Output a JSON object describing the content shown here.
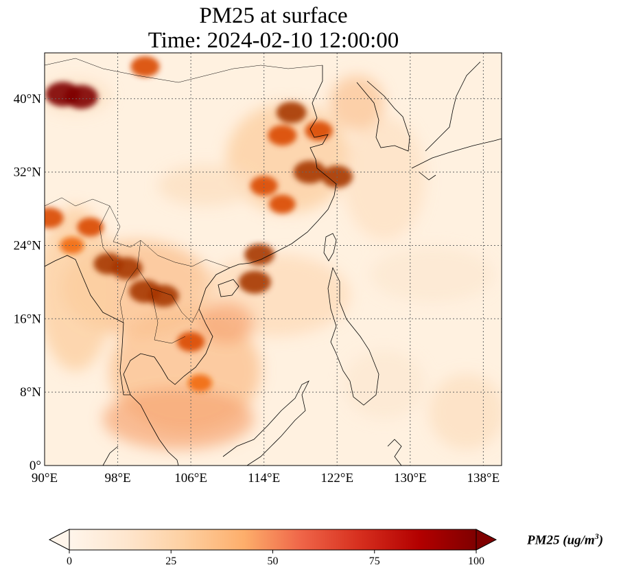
{
  "title": {
    "line1": "PM25 at surface",
    "line2": "Time: 2024-02-10 12:00:00"
  },
  "map": {
    "lon_range": [
      90,
      140
    ],
    "lat_range": [
      0,
      45
    ],
    "lon_ticks": [
      90,
      98,
      106,
      114,
      122,
      130,
      138
    ],
    "lon_tick_labels": [
      "90°E",
      "98°E",
      "106°E",
      "114°E",
      "122°E",
      "130°E",
      "138°E"
    ],
    "lat_ticks": [
      0,
      8,
      16,
      24,
      32,
      40
    ],
    "lat_tick_labels": [
      "0°",
      "8°N",
      "16°N",
      "24°N",
      "32°N",
      "40°N"
    ],
    "gridlines": "dotted",
    "colormap": [
      "#fff5eb",
      "#fee6ce",
      "#fdd0a2",
      "#fdae6b",
      "#f16913",
      "#d94801",
      "#a63603",
      "#7f0000"
    ],
    "hotspots": [
      {
        "lon": 92,
        "lat": 40.5,
        "value": 100
      },
      {
        "lon": 94,
        "lat": 40.2,
        "value": 95
      },
      {
        "lon": 101,
        "lat": 43.5,
        "value": 75
      },
      {
        "lon": 117,
        "lat": 38.5,
        "value": 80
      },
      {
        "lon": 116,
        "lat": 36,
        "value": 75
      },
      {
        "lon": 120,
        "lat": 36.5,
        "value": 70
      },
      {
        "lon": 119,
        "lat": 32,
        "value": 90
      },
      {
        "lon": 122,
        "lat": 31.5,
        "value": 85
      },
      {
        "lon": 114,
        "lat": 30.5,
        "value": 70
      },
      {
        "lon": 116,
        "lat": 28.5,
        "value": 65
      },
      {
        "lon": 97,
        "lat": 22,
        "value": 80
      },
      {
        "lon": 99,
        "lat": 21.5,
        "value": 85
      },
      {
        "lon": 101,
        "lat": 19,
        "value": 90
      },
      {
        "lon": 103,
        "lat": 18.5,
        "value": 85
      },
      {
        "lon": 113.5,
        "lat": 23,
        "value": 80
      },
      {
        "lon": 113,
        "lat": 20,
        "value": 90
      },
      {
        "lon": 106,
        "lat": 13.5,
        "value": 70
      },
      {
        "lon": 107,
        "lat": 9,
        "value": 55
      },
      {
        "lon": 90.5,
        "lat": 27,
        "value": 75
      },
      {
        "lon": 95,
        "lat": 26,
        "value": 65
      },
      {
        "lon": 93,
        "lat": 24,
        "value": 55
      }
    ]
  },
  "colorbar": {
    "ticks": [
      0,
      25,
      50,
      75,
      100
    ],
    "label_main": "PM25 (ug/m",
    "label_sup": "3",
    "label_end": ")",
    "extend": "both"
  }
}
